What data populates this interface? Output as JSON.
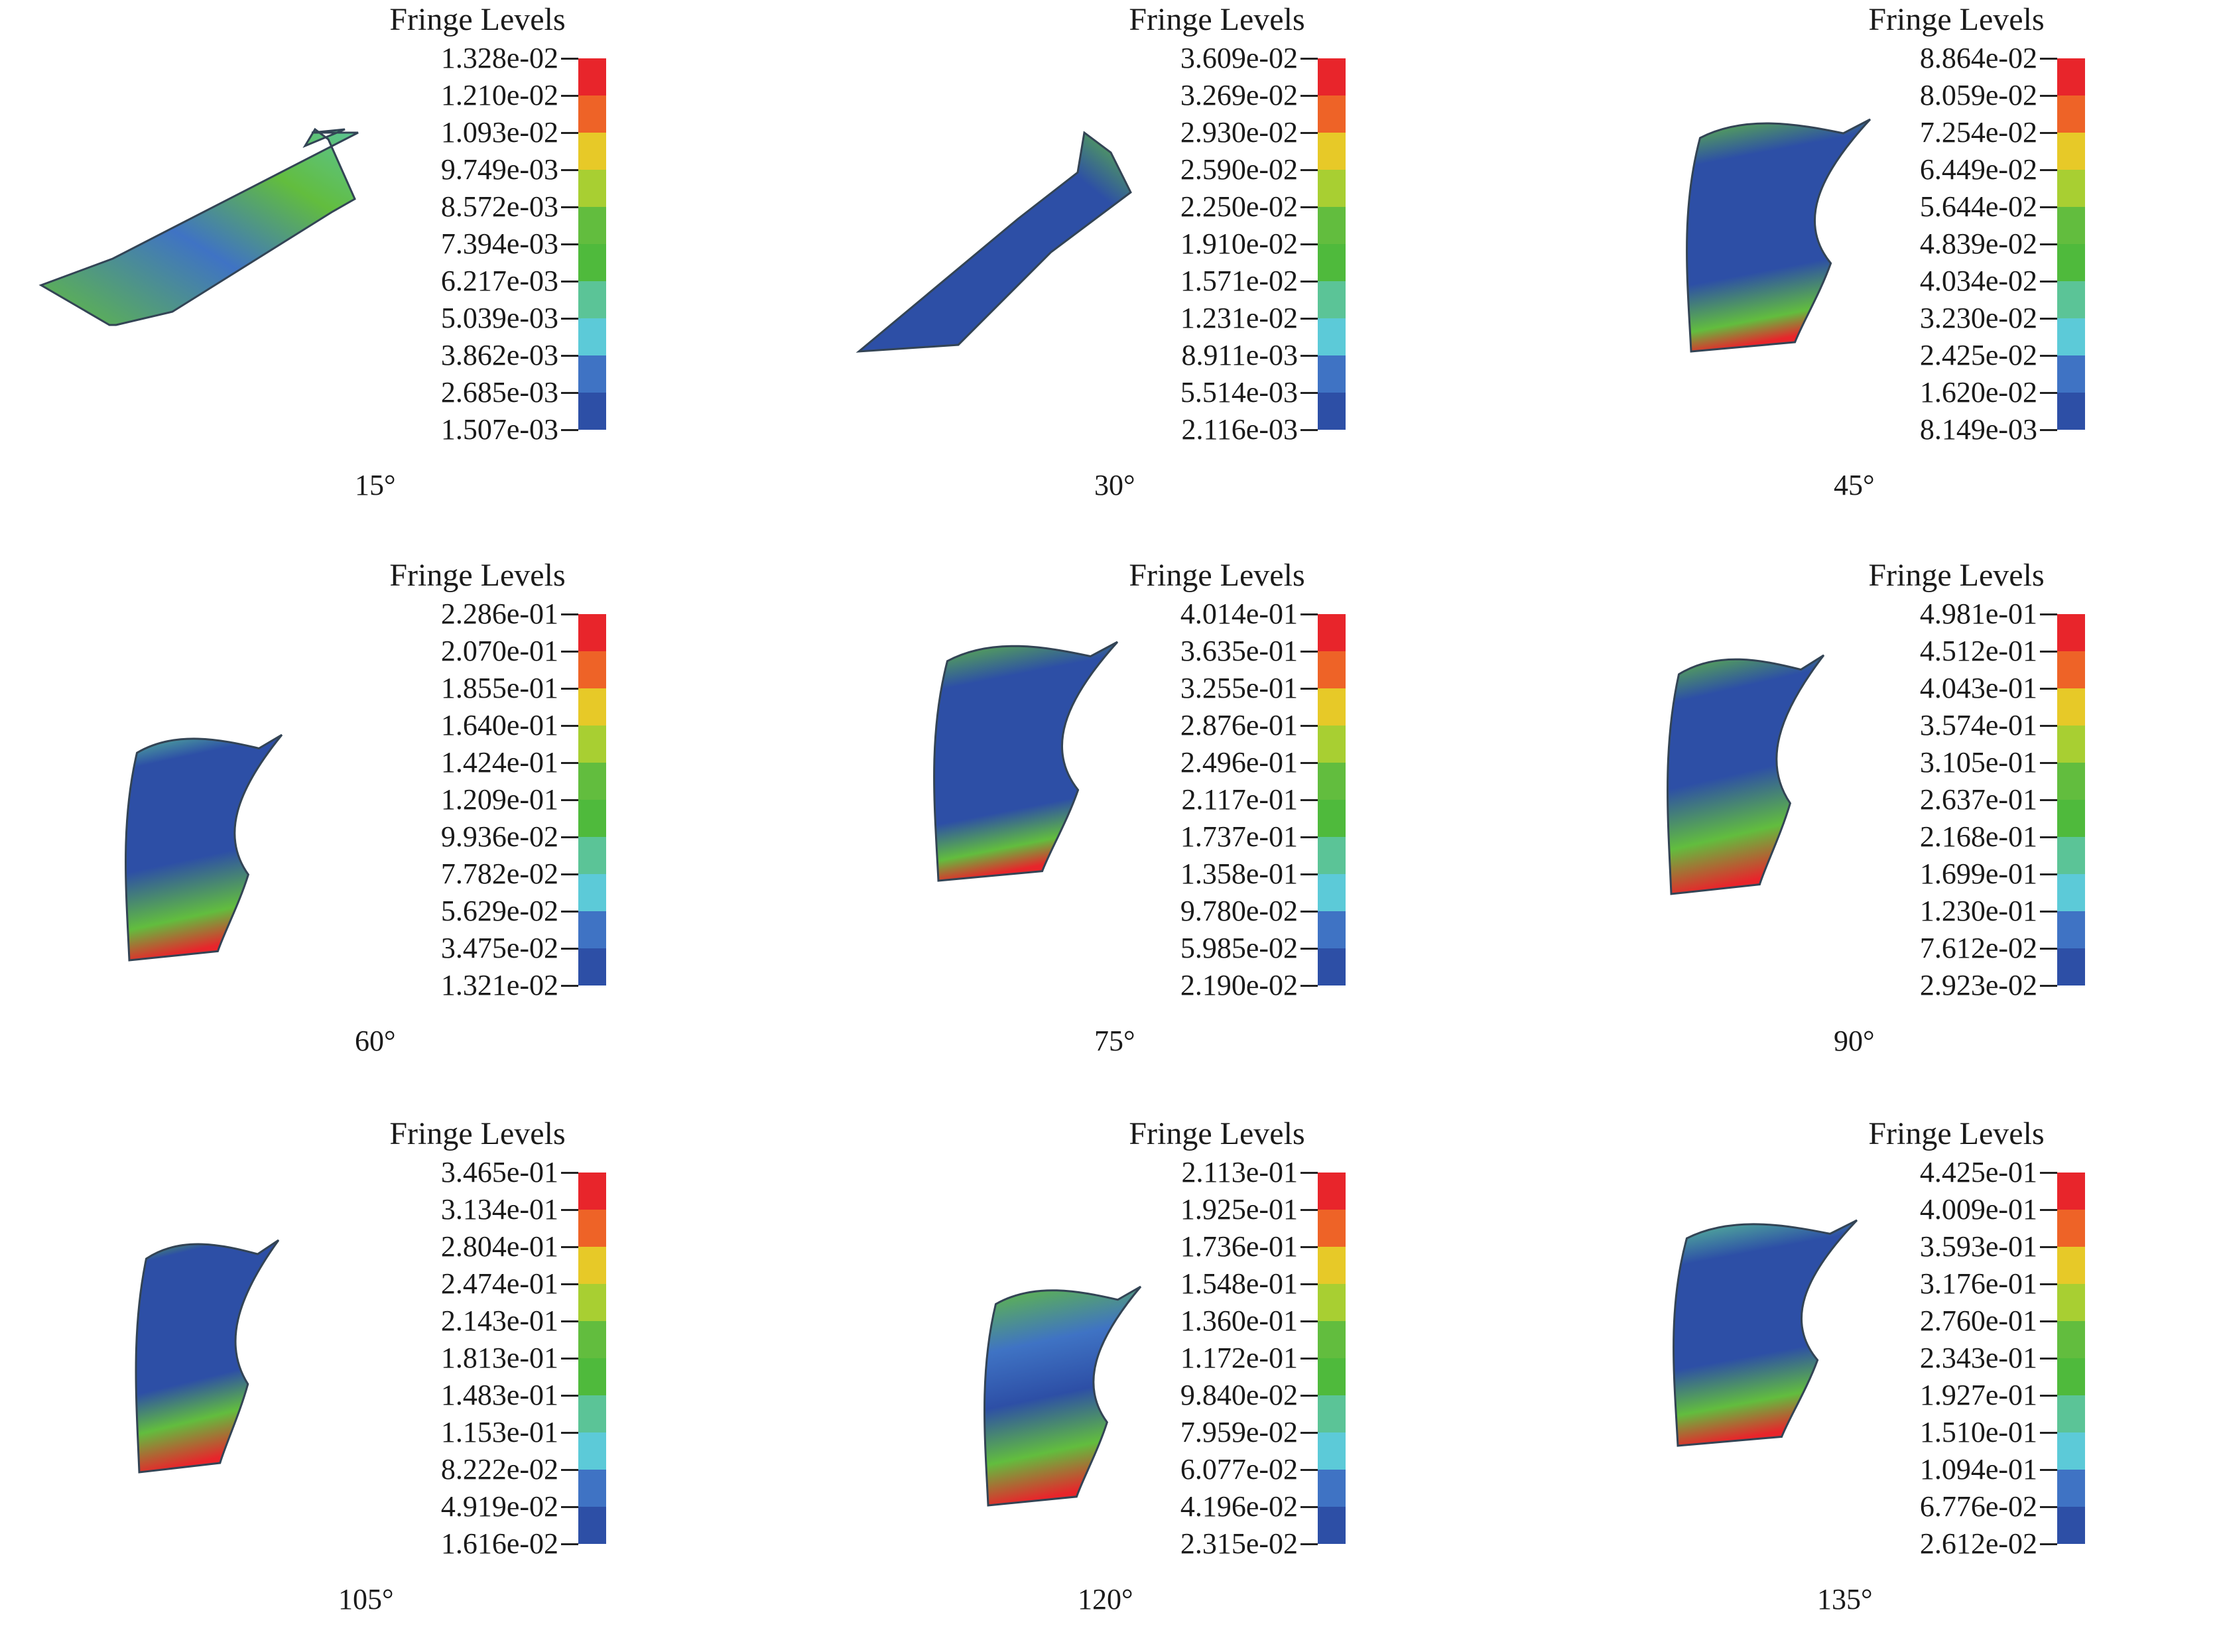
{
  "legend_title": "Fringe Levels",
  "palette": [
    "#e8252b",
    "#ee6327",
    "#e7c928",
    "#a8cf32",
    "#62bd3e",
    "#4fba3c",
    "#5bc497",
    "#5ccad8",
    "#3f73c4",
    "#2d4fa6"
  ],
  "panels": [
    {
      "angle": "15°",
      "levels": [
        "1.328e-02",
        "1.210e-02",
        "1.093e-02",
        "9.749e-03",
        "8.572e-03",
        "7.394e-03",
        "6.217e-03",
        "5.039e-03",
        "3.862e-03",
        "2.685e-03",
        "1.507e-03"
      ]
    },
    {
      "angle": "30°",
      "levels": [
        "3.609e-02",
        "3.269e-02",
        "2.930e-02",
        "2.590e-02",
        "2.250e-02",
        "1.910e-02",
        "1.571e-02",
        "1.231e-02",
        "8.911e-03",
        "5.514e-03",
        "2.116e-03"
      ]
    },
    {
      "angle": "45°",
      "levels": [
        "8.864e-02",
        "8.059e-02",
        "7.254e-02",
        "6.449e-02",
        "5.644e-02",
        "4.839e-02",
        "4.034e-02",
        "3.230e-02",
        "2.425e-02",
        "1.620e-02",
        "8.149e-03"
      ]
    },
    {
      "angle": "60°",
      "levels": [
        "2.286e-01",
        "2.070e-01",
        "1.855e-01",
        "1.640e-01",
        "1.424e-01",
        "1.209e-01",
        "9.936e-02",
        "7.782e-02",
        "5.629e-02",
        "3.475e-02",
        "1.321e-02"
      ]
    },
    {
      "angle": "75°",
      "levels": [
        "4.014e-01",
        "3.635e-01",
        "3.255e-01",
        "2.876e-01",
        "2.496e-01",
        "2.117e-01",
        "1.737e-01",
        "1.358e-01",
        "9.780e-02",
        "5.985e-02",
        "2.190e-02"
      ]
    },
    {
      "angle": "90°",
      "levels": [
        "4.981e-01",
        "4.512e-01",
        "4.043e-01",
        "3.574e-01",
        "3.105e-01",
        "2.637e-01",
        "2.168e-01",
        "1.699e-01",
        "1.230e-01",
        "7.612e-02",
        "2.923e-02"
      ]
    },
    {
      "angle": "105°",
      "levels": [
        "3.465e-01",
        "3.134e-01",
        "2.804e-01",
        "2.474e-01",
        "2.143e-01",
        "1.813e-01",
        "1.483e-01",
        "1.153e-01",
        "8.222e-02",
        "4.919e-02",
        "1.616e-02"
      ]
    },
    {
      "angle": "120°",
      "levels": [
        "2.113e-01",
        "1.925e-01",
        "1.736e-01",
        "1.548e-01",
        "1.360e-01",
        "1.172e-01",
        "9.840e-02",
        "7.959e-02",
        "6.077e-02",
        "4.196e-02",
        "2.315e-02"
      ]
    },
    {
      "angle": "135°",
      "levels": [
        "4.425e-01",
        "4.009e-01",
        "3.593e-01",
        "3.176e-01",
        "2.760e-01",
        "2.343e-01",
        "1.927e-01",
        "1.510e-01",
        "1.094e-01",
        "6.776e-02",
        "2.612e-02"
      ]
    }
  ]
}
